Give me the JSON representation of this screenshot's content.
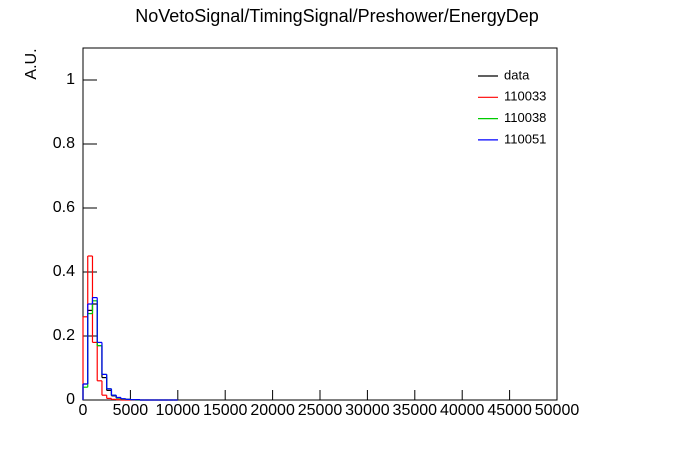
{
  "chart_data": {
    "type": "histogram",
    "title": "NoVetoSignal/TimingSignal/Preshower/EnergyDep",
    "y_label": "A.U.",
    "bins": [
      0,
      500,
      1000,
      1500,
      2000,
      2500,
      3000,
      3500,
      4000,
      4500,
      5000,
      5500,
      6000,
      6500,
      7000,
      7500,
      8000,
      8500,
      9000,
      9500,
      10000
    ],
    "series": [
      {
        "name": "data",
        "color": "#000000",
        "values": [
          0.05,
          0.28,
          0.3,
          0.17,
          0.07,
          0.03,
          0.013,
          0.006,
          0.003,
          0.002,
          0.001,
          0.001,
          0,
          0,
          0,
          0,
          0,
          0,
          0,
          0
        ]
      },
      {
        "name": "110033",
        "color": "#ff0000",
        "values": [
          0.26,
          0.45,
          0.18,
          0.06,
          0.015,
          0.005,
          0.002,
          0.001,
          0,
          0,
          0,
          0,
          0,
          0,
          0,
          0,
          0,
          0,
          0,
          0
        ]
      },
      {
        "name": "110038",
        "color": "#00cc00",
        "values": [
          0.04,
          0.27,
          0.31,
          0.17,
          0.08,
          0.035,
          0.015,
          0.007,
          0.003,
          0.002,
          0.001,
          0,
          0,
          0,
          0,
          0,
          0,
          0,
          0,
          0
        ]
      },
      {
        "name": "110051",
        "color": "#0000ff",
        "values": [
          0.05,
          0.3,
          0.32,
          0.18,
          0.08,
          0.035,
          0.015,
          0.008,
          0.004,
          0.002,
          0.001,
          0.001,
          0,
          0,
          0,
          0,
          0,
          0,
          0,
          0
        ]
      }
    ],
    "xlim": [
      0,
      50000
    ],
    "xticks": [
      0,
      5000,
      10000,
      15000,
      20000,
      25000,
      30000,
      35000,
      40000,
      45000,
      50000
    ],
    "ylim": [
      0,
      1.1
    ],
    "yticks": [
      0,
      0.2,
      0.4,
      0.6,
      0.8,
      1
    ],
    "legend": "top-right"
  }
}
